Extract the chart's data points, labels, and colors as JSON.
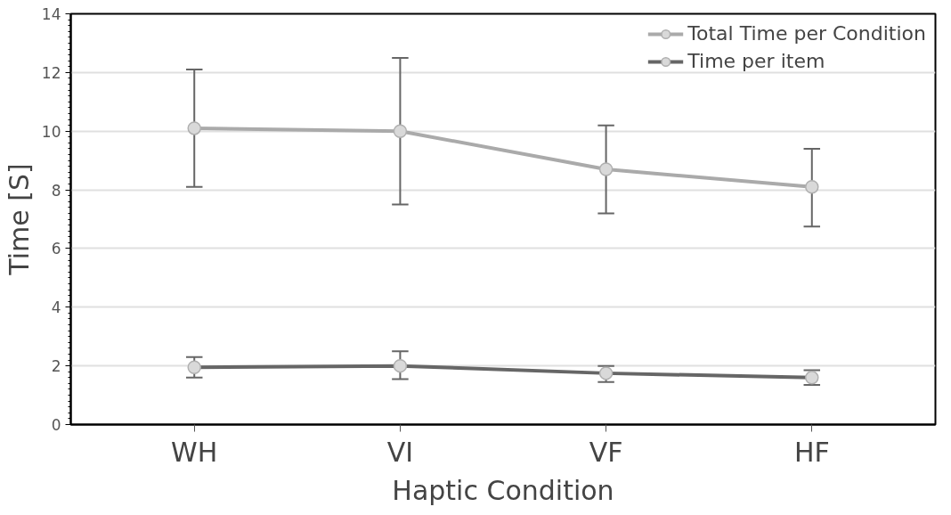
{
  "chart_data": {
    "type": "line",
    "xlabel": "Haptic Condition",
    "ylabel": "Time [S]",
    "categories": [
      "WH",
      "VI",
      "VF",
      "HF"
    ],
    "series": [
      {
        "name": "Total Time per Condition",
        "color": "#aaaaaa",
        "values": [
          10.1,
          10.0,
          8.7,
          8.1
        ],
        "errors": [
          [
            8.1,
            12.1
          ],
          [
            7.5,
            12.5
          ],
          [
            7.2,
            10.2
          ],
          [
            6.75,
            9.4
          ]
        ]
      },
      {
        "name": "Time per item",
        "color": "#666666",
        "values": [
          1.95,
          2.0,
          1.75,
          1.6
        ],
        "errors": [
          [
            1.6,
            2.3
          ],
          [
            1.55,
            2.5
          ],
          [
            1.45,
            2.0
          ],
          [
            1.35,
            1.85
          ]
        ]
      }
    ],
    "ylim": [
      0,
      14
    ],
    "yticks": [
      0,
      2,
      4,
      6,
      8,
      10,
      12,
      14
    ],
    "grid": "y",
    "legend": "top right",
    "marker": "circle",
    "line_style": "solid"
  }
}
